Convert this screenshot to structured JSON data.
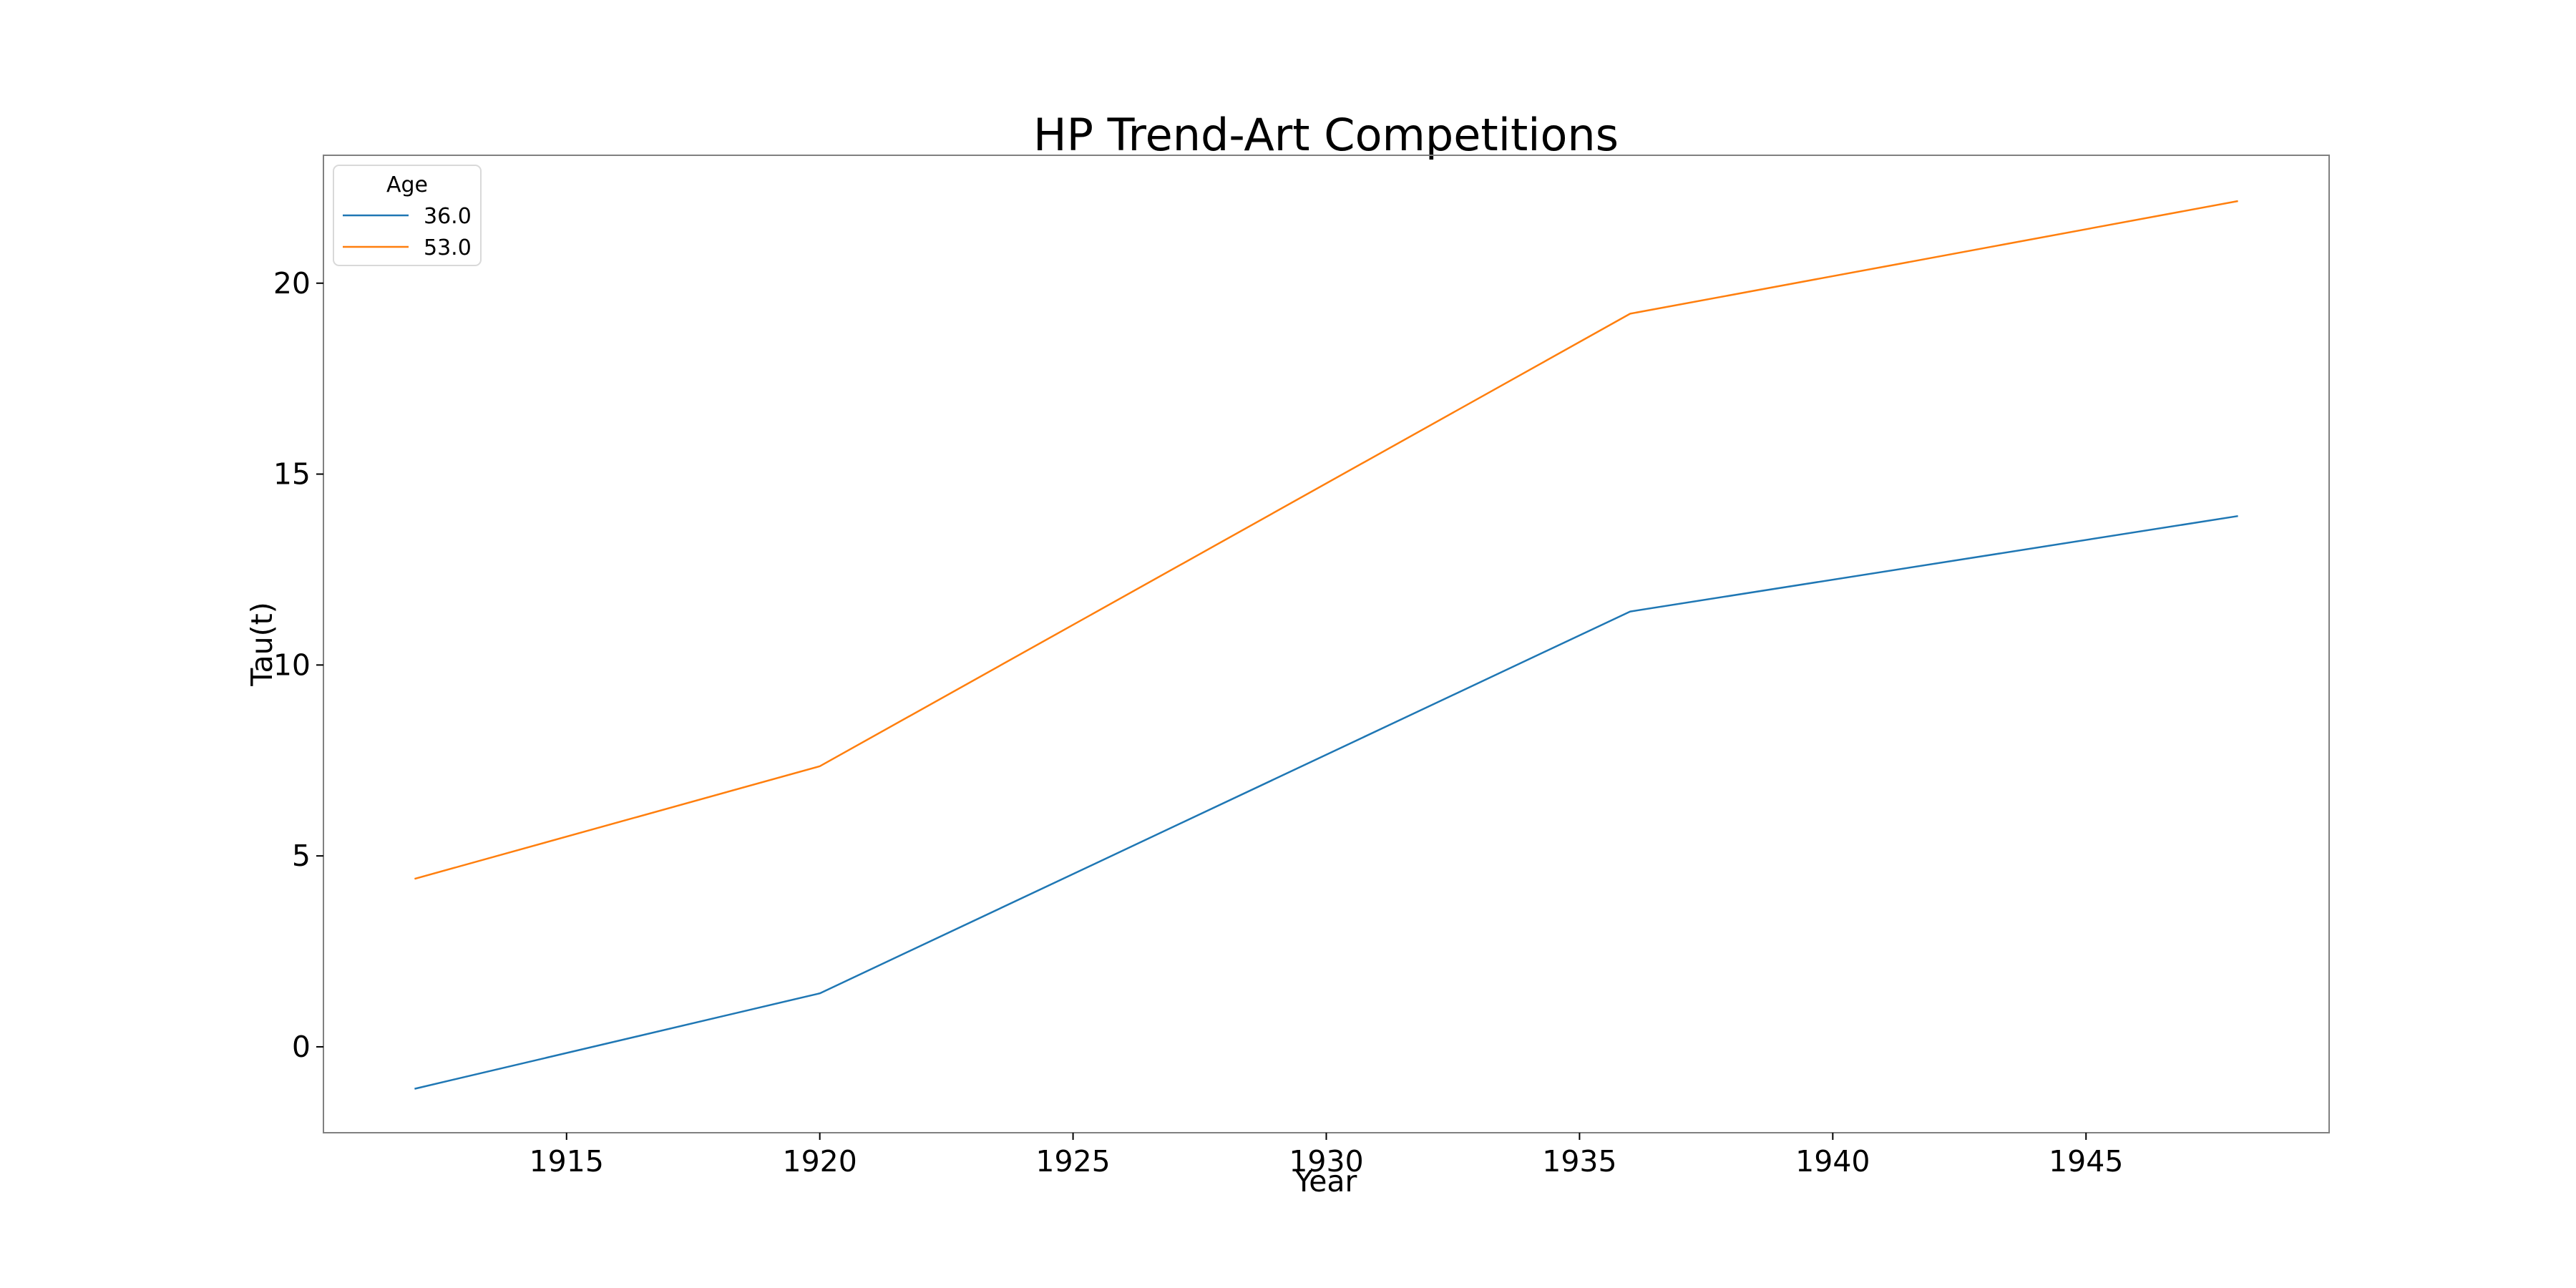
{
  "chart_data": {
    "type": "line",
    "title": "HP Trend-Art Competitions",
    "xlabel": "Year",
    "ylabel": "Tau(t)",
    "x": [
      1912,
      1920,
      1936,
      1948
    ],
    "series": [
      {
        "name": "36.0",
        "values": [
          -1.1,
          1.4,
          11.4,
          13.9
        ],
        "color": "#1f77b4"
      },
      {
        "name": "53.0",
        "values": [
          4.4,
          7.35,
          19.2,
          22.15
        ],
        "color": "#ff7f0e"
      }
    ],
    "xlim": [
      1910.2,
      1949.8
    ],
    "ylim": [
      -2.25,
      23.35
    ],
    "xticks": [
      "1915",
      "1920",
      "1925",
      "1930",
      "1935",
      "1940",
      "1945"
    ],
    "yticks": [
      "0",
      "5",
      "10",
      "15",
      "20"
    ],
    "grid": false,
    "legend": {
      "title": "Age",
      "placement": "top-left"
    }
  }
}
